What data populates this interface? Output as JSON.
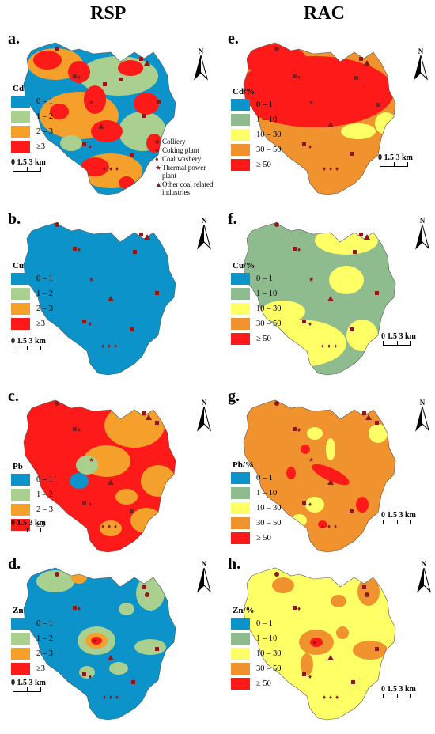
{
  "columns": {
    "left": "RSP",
    "right": "RAC"
  },
  "colors": {
    "blue": "#0c93c9",
    "green": "#a9d08e",
    "lightgreen": "#8fbc8f",
    "orange": "#f5a02a",
    "red": "#ff1a1a",
    "yellow": "#ffff66",
    "orange2": "#f0922e",
    "marker": "#8b1a1a"
  },
  "rsp_legend": [
    {
      "label": "0 – 1",
      "color": "#0c93c9"
    },
    {
      "label": "1 – 2",
      "color": "#a9d08e"
    },
    {
      "label": "2 – 3",
      "color": "#f5a02a"
    },
    {
      "label": "≥3",
      "color": "#ff1a1a"
    }
  ],
  "rac_legend": [
    {
      "label": "0 – 1",
      "color": "#0c93c9"
    },
    {
      "label": "1 – 10",
      "color": "#8fbc8f"
    },
    {
      "label": "10 – 30",
      "color": "#ffff66"
    },
    {
      "label": "30 – 50",
      "color": "#f0922e"
    },
    {
      "label": "≥ 50",
      "color": "#ff1a1a"
    }
  ],
  "panels": {
    "a": {
      "label": "a.",
      "title": "Cd"
    },
    "b": {
      "label": "b.",
      "title": "Cu"
    },
    "c": {
      "label": "c.",
      "title": "Pb"
    },
    "d": {
      "label": "d.",
      "title": "Zn"
    },
    "e": {
      "label": "e.",
      "title": "Cd/%"
    },
    "f": {
      "label": "f.",
      "title": "Cu/%"
    },
    "g": {
      "label": "g.",
      "title": "Pb/%"
    },
    "h": {
      "label": "h.",
      "title": "Zn/%"
    }
  },
  "scale_text": "0 1.5 3 km",
  "north_text": "N",
  "sources": [
    {
      "symbol": "■",
      "label": "Colliery"
    },
    {
      "symbol": "●",
      "label": "Coking plant"
    },
    {
      "symbol": "♦",
      "label": "Coal washery"
    },
    {
      "symbol": "★",
      "label": "Thermal power plant"
    },
    {
      "symbol": "▲",
      "label": "Other coal related industries"
    }
  ]
}
